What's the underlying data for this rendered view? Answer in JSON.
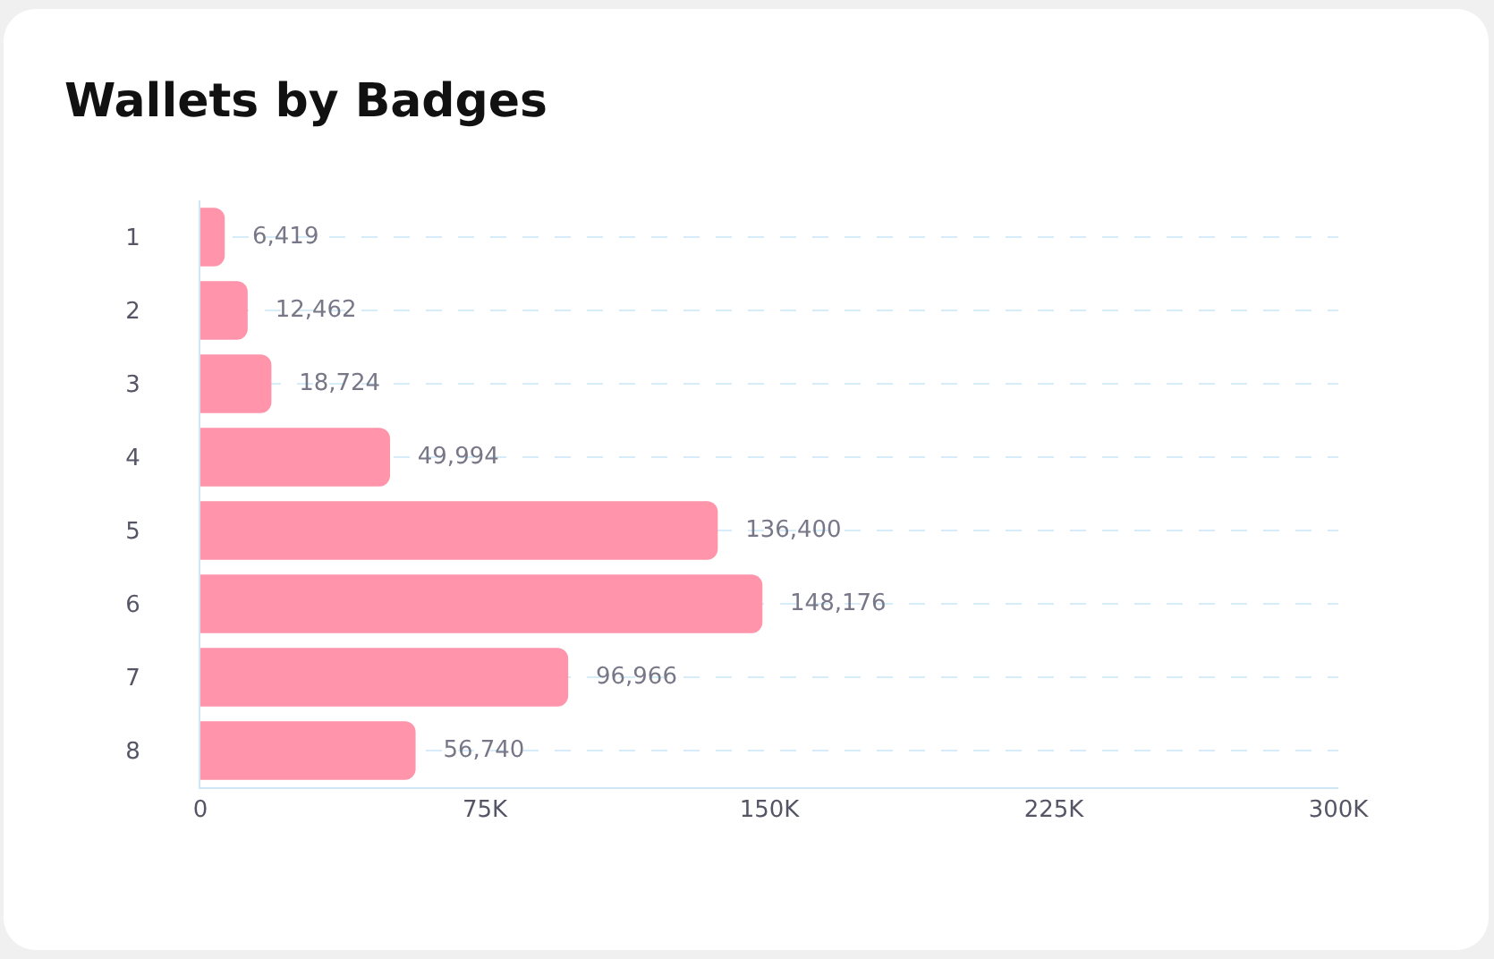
{
  "chart_data": {
    "type": "bar",
    "title": "Wallets by Badges",
    "orientation": "horizontal",
    "categories": [
      "1",
      "2",
      "3",
      "4",
      "5",
      "6",
      "7",
      "8"
    ],
    "values": [
      6419,
      12462,
      18724,
      49994,
      136400,
      148176,
      96966,
      56740
    ],
    "value_labels": [
      "6,419",
      "12,462",
      "18,724",
      "49,994",
      "136,400",
      "148,176",
      "96,966",
      "56,740"
    ],
    "color": "#ff94aa",
    "grid": "y",
    "xlim": [
      0,
      300000
    ],
    "xticks": [
      0,
      {
        "value": 75000,
        "label": "75K"
      },
      {
        "value": 150000,
        "label": "150K"
      },
      {
        "value": 225000,
        "label": "225K"
      },
      {
        "value": 300000,
        "label": "300K"
      }
    ]
  }
}
